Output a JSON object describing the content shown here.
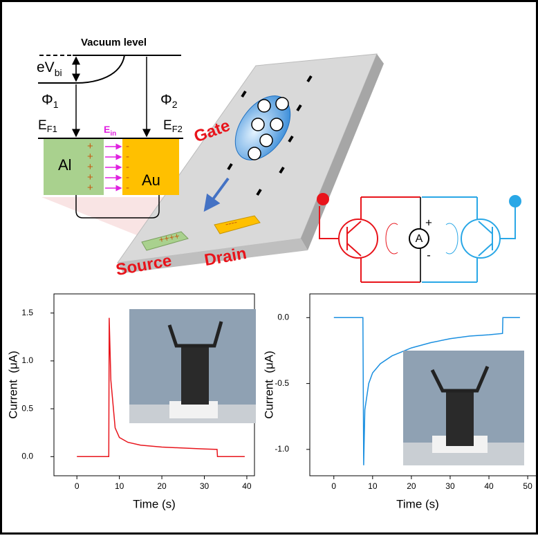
{
  "band_diagram": {
    "vacuum_level": "Vacuum level",
    "ev": "eV",
    "bi": "bi",
    "phi": "Φ",
    "one": "1",
    "two": "2",
    "ef": "E",
    "f1": "F1",
    "f2": "F2",
    "e_in": "E",
    "in": "in",
    "al": "Al",
    "au": "Au",
    "plus": "+",
    "minus": "-"
  },
  "device": {
    "gate": "Gate",
    "source": "Source",
    "drain": "Drain",
    "source_charges": "++++",
    "drain_charges": "----"
  },
  "circuit": {
    "ammeter": "A",
    "plus": "+",
    "minus": "-"
  },
  "chart_data": [
    {
      "type": "line",
      "x_label": "Time (s)",
      "y_label": "Current  (μA)",
      "xlim": [
        -5.4,
        41.8
      ],
      "xticks": [
        0,
        10,
        20,
        30,
        40
      ],
      "ylim": [
        -0.2,
        1.7
      ],
      "yticks": [
        {
          "value": 0,
          "label": "0.0"
        },
        {
          "value": 0.5,
          "label": "0.5"
        },
        {
          "value": 1,
          "label": "1.0"
        },
        {
          "value": 1.5,
          "label": "1.5"
        }
      ],
      "series": [
        {
          "color": "#e8141b",
          "x": [
            0,
            7.5,
            7.6,
            8,
            9,
            10,
            12,
            15,
            20,
            25,
            30,
            33,
            33.1,
            39.5
          ],
          "values": [
            0,
            0,
            1.45,
            0.8,
            0.3,
            0.2,
            0.15,
            0.12,
            0.1,
            0.09,
            0.08,
            0.075,
            0,
            0
          ]
        }
      ]
    },
    {
      "type": "line",
      "x_label": "Time (s)",
      "y_label": "Current  (μA)",
      "xlim": [
        -6.2,
        52.3
      ],
      "xticks": [
        0,
        10,
        20,
        30,
        40,
        50
      ],
      "ylim": [
        -1.2,
        0.18
      ],
      "yticks": [
        {
          "value": 0,
          "label": "0.0"
        },
        {
          "value": -0.5,
          "label": "-0.5"
        },
        {
          "value": -1,
          "label": "-1.0"
        }
      ],
      "series": [
        {
          "color": "#1a8fe0",
          "x": [
            0,
            7.5,
            7.7,
            8,
            9,
            10,
            12,
            15,
            20,
            25,
            30,
            35,
            40,
            43.5,
            43.6,
            48
          ],
          "values": [
            0,
            0,
            -1.12,
            -0.7,
            -0.5,
            -0.42,
            -0.35,
            -0.29,
            -0.23,
            -0.19,
            -0.16,
            -0.14,
            -0.13,
            -0.12,
            0,
            0
          ]
        }
      ]
    }
  ]
}
